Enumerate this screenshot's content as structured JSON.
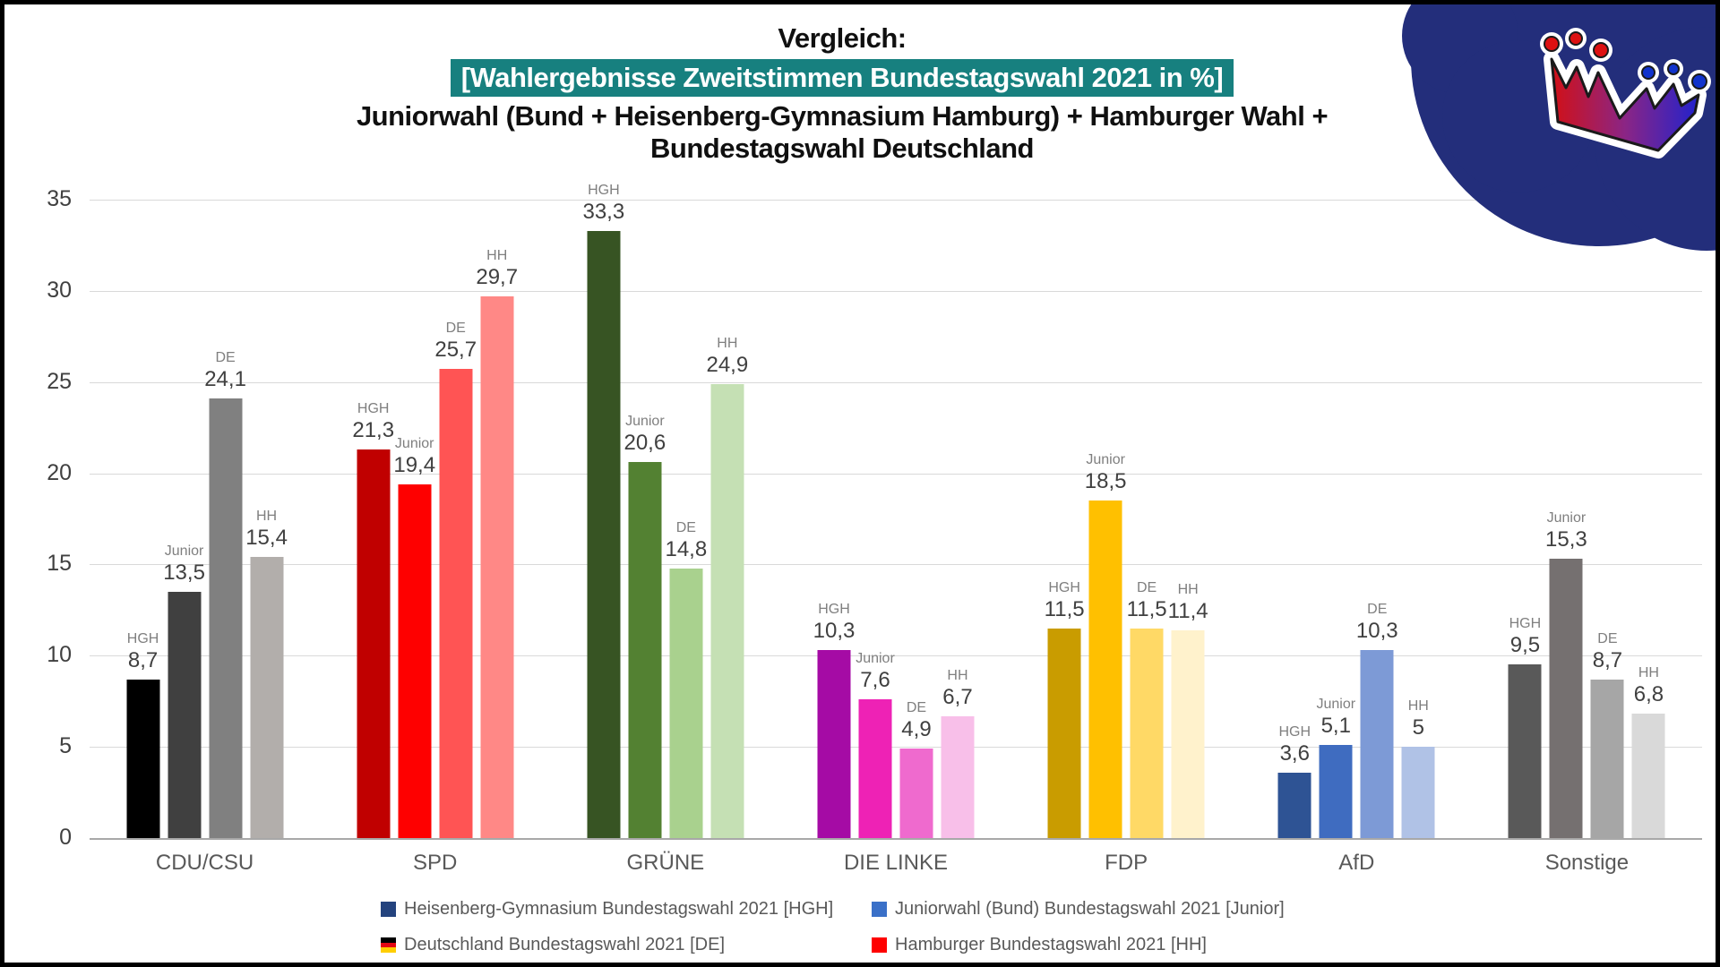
{
  "title": {
    "line1": "Vergleich:",
    "line2": "[Wahlergebnisse Zweitstimmen Bundestagswahl 2021 in %]",
    "line2_highlight_bg": "#17807f",
    "line3": "Juniorwahl (Bund + Heisenberg-Gymnasium Hamburg) + Hamburger Wahl +",
    "line4": "Bundestagswahl Deutschland"
  },
  "chart_data": {
    "type": "bar",
    "title": "Vergleich: [Wahlergebnisse Zweitstimmen Bundestagswahl 2021 in %] Juniorwahl (Bund + Heisenberg-Gymnasium Hamburg) + Hamburger Wahl + Bundestagswahl Deutschland",
    "categories": [
      "CDU/CSU",
      "SPD",
      "GRÜNE",
      "DIE LINKE",
      "FDP",
      "AfD",
      "Sonstige"
    ],
    "series": [
      {
        "name": "HGH",
        "values": [
          8.7,
          21.3,
          33.3,
          10.3,
          11.5,
          3.6,
          9.5
        ],
        "value_labels": [
          "8,7",
          "21,3",
          "33,3",
          "10,3",
          "11,5",
          "3,6",
          "9,5"
        ]
      },
      {
        "name": "Junior",
        "values": [
          13.5,
          19.4,
          20.6,
          7.6,
          18.5,
          5.1,
          15.3
        ],
        "value_labels": [
          "13,5",
          "19,4",
          "20,6",
          "7,6",
          "18,5",
          "5,1",
          "15,3"
        ]
      },
      {
        "name": "DE",
        "values": [
          24.1,
          25.7,
          14.8,
          4.9,
          11.5,
          10.3,
          8.7
        ],
        "value_labels": [
          "24,1",
          "25,7",
          "14,8",
          "4,9",
          "11,5",
          "10,3",
          "8,7"
        ]
      },
      {
        "name": "HH",
        "values": [
          15.4,
          29.7,
          24.9,
          6.7,
          11.4,
          5,
          6.8
        ],
        "value_labels": [
          "15,4",
          "29,7",
          "24,9",
          "6,7",
          "11,4",
          "5",
          "6,8"
        ]
      }
    ],
    "bar_colors_by_category": [
      [
        "#000000",
        "#404040",
        "#808080",
        "#b2aeab"
      ],
      [
        "#c00000",
        "#fe0000",
        "#ff5454",
        "#ff8886"
      ],
      [
        "#375423",
        "#538132",
        "#a9d18e",
        "#c5e0b4"
      ],
      [
        "#a50ba5",
        "#ee22b5",
        "#ef6ace",
        "#f8bfe9"
      ],
      [
        "#c99c00",
        "#ffc000",
        "#ffd966",
        "#fff2cc"
      ],
      [
        "#2e5394",
        "#3f6cc0",
        "#7d9ad6",
        "#b0c2e6"
      ],
      [
        "#595959",
        "#757070",
        "#a6a6a6",
        "#d9d9d9"
      ]
    ],
    "ylim": [
      0,
      35
    ],
    "yticks": [
      0,
      5,
      10,
      15,
      20,
      25,
      30,
      35
    ],
    "grid": true,
    "legend_position": "bottom"
  },
  "legend": {
    "items": [
      {
        "label": "Heisenberg-Gymnasium Bundestagswahl 2021 [HGH]",
        "marker_type": "square",
        "marker_color": "#24437e"
      },
      {
        "label": "Juniorwahl (Bund) Bundestagswahl 2021 [Junior]",
        "marker_type": "square",
        "marker_color": "#3a70c8"
      },
      {
        "label": "Deutschland Bundestagswahl 2021 [DE]",
        "marker_type": "flag-de",
        "marker_colors": [
          "#000000",
          "#e30613",
          "#ffce00"
        ]
      },
      {
        "label": "Hamburger Bundestagswahl 2021 [HH]",
        "marker_type": "square",
        "marker_color": "#fe0000"
      }
    ]
  },
  "logo": {
    "blob_color": "#232e7b",
    "crown_gradient": [
      "#d21016",
      "#8b2585",
      "#2222cc"
    ],
    "dot_color_left": "#dd1111",
    "dot_color_right": "#1133cc",
    "outline_color": "#ffffff"
  }
}
